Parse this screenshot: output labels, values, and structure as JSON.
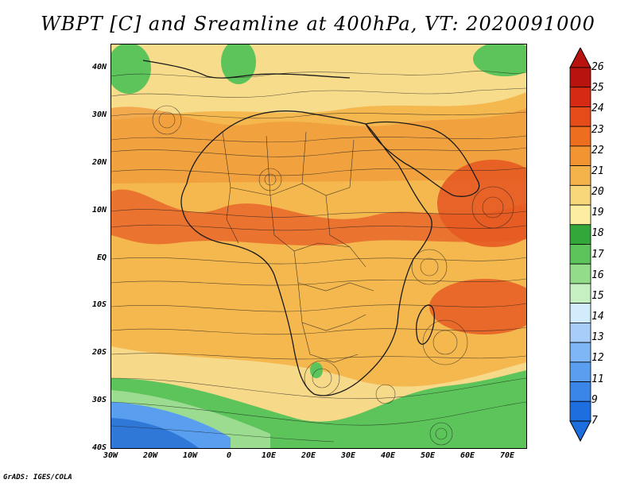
{
  "title": "WBPT [C] and Sreamline at 400hPa, VT: 2020091000",
  "footer": "GrADS: IGES/COLA",
  "map": {
    "lat_labels": [
      "40N",
      "30N",
      "20N",
      "10N",
      "EQ",
      "10S",
      "20S",
      "30S",
      "40S"
    ],
    "lon_labels": [
      "30W",
      "20W",
      "10W",
      "0",
      "10E",
      "20E",
      "30E",
      "40E",
      "50E",
      "60E",
      "70E"
    ],
    "lat_range": [
      -40,
      44
    ],
    "lon_range": [
      -30,
      74
    ]
  },
  "colorbar": {
    "levels": [
      "7",
      "9",
      "11",
      "12",
      "13",
      "14",
      "15",
      "16",
      "17",
      "18",
      "19",
      "20",
      "21",
      "22",
      "23",
      "24",
      "25",
      "26"
    ],
    "colors": [
      "#1d6fe0",
      "#3a86e8",
      "#5a9ef0",
      "#7fb6f5",
      "#a7cef8",
      "#d2ecfb",
      "#c6f0c2",
      "#92dc8a",
      "#5cc45a",
      "#33a83a",
      "#fbeea0",
      "#f8d67a",
      "#f4b24a",
      "#f29432",
      "#ee6e20",
      "#e64b1a",
      "#d62a14",
      "#b8130e"
    ]
  },
  "legend_colors": {
    "cold": "#2f78d8",
    "cool": "#64c15e",
    "mild": "#f6e29a",
    "warm": "#f2a745",
    "hot": "#e56627",
    "coast": "#1a1a1a"
  }
}
